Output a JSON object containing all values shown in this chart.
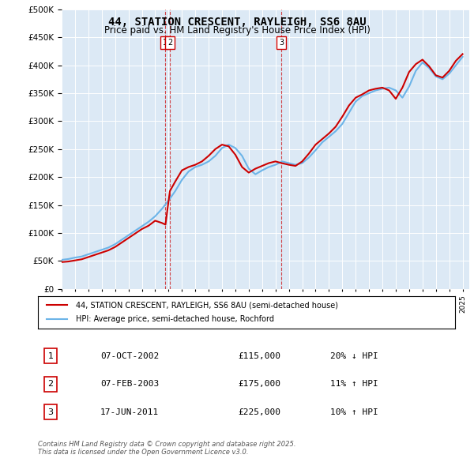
{
  "title": "44, STATION CRESCENT, RAYLEIGH, SS6 8AU",
  "subtitle": "Price paid vs. HM Land Registry's House Price Index (HPI)",
  "background_color": "#dce9f5",
  "plot_bg_color": "#dce9f5",
  "ymin": 0,
  "ymax": 500000,
  "xmin": 1995.0,
  "xmax": 2025.5,
  "legend_line1": "44, STATION CRESCENT, RAYLEIGH, SS6 8AU (semi-detached house)",
  "legend_line2": "HPI: Average price, semi-detached house, Rochford",
  "transactions": [
    {
      "num": 1,
      "date": "07-OCT-2002",
      "price": 115000,
      "change": "20% ↓ HPI",
      "x_year": 2002.77
    },
    {
      "num": 2,
      "date": "07-FEB-2003",
      "price": 175000,
      "change": "11% ↑ HPI",
      "x_year": 2003.1
    },
    {
      "num": 3,
      "date": "17-JUN-2011",
      "price": 225000,
      "change": "10% ↑ HPI",
      "x_year": 2011.46
    }
  ],
  "footer": "Contains HM Land Registry data © Crown copyright and database right 2025.\nThis data is licensed under the Open Government Licence v3.0.",
  "hpi_x": [
    1995.0,
    1995.5,
    1996.0,
    1996.5,
    1997.0,
    1997.5,
    1998.0,
    1998.5,
    1999.0,
    1999.5,
    2000.0,
    2000.5,
    2001.0,
    2001.5,
    2002.0,
    2002.5,
    2003.0,
    2003.5,
    2004.0,
    2004.5,
    2005.0,
    2005.5,
    2006.0,
    2006.5,
    2007.0,
    2007.5,
    2008.0,
    2008.5,
    2009.0,
    2009.5,
    2010.0,
    2010.5,
    2011.0,
    2011.5,
    2012.0,
    2012.5,
    2013.0,
    2013.5,
    2014.0,
    2014.5,
    2015.0,
    2015.5,
    2016.0,
    2016.5,
    2017.0,
    2017.5,
    2018.0,
    2018.5,
    2019.0,
    2019.5,
    2020.0,
    2020.5,
    2021.0,
    2021.5,
    2022.0,
    2022.5,
    2023.0,
    2023.5,
    2024.0,
    2024.5,
    2025.0
  ],
  "hpi_y": [
    52000,
    53500,
    56000,
    58000,
    62000,
    66000,
    70000,
    74000,
    80000,
    88000,
    96000,
    104000,
    112000,
    120000,
    130000,
    143000,
    158000,
    175000,
    195000,
    210000,
    218000,
    222000,
    228000,
    238000,
    252000,
    258000,
    252000,
    238000,
    215000,
    205000,
    212000,
    218000,
    222000,
    228000,
    225000,
    222000,
    225000,
    235000,
    248000,
    262000,
    272000,
    282000,
    295000,
    315000,
    335000,
    345000,
    350000,
    355000,
    358000,
    360000,
    355000,
    342000,
    362000,
    390000,
    405000,
    395000,
    380000,
    375000,
    385000,
    400000,
    415000
  ],
  "price_x": [
    1995.0,
    1995.5,
    1996.0,
    1996.5,
    1997.0,
    1997.5,
    1998.0,
    1998.5,
    1999.0,
    1999.5,
    2000.0,
    2000.5,
    2001.0,
    2001.5,
    2002.0,
    2002.5,
    2002.77,
    2003.1,
    2003.5,
    2004.0,
    2004.5,
    2005.0,
    2005.5,
    2006.0,
    2006.5,
    2007.0,
    2007.5,
    2008.0,
    2008.5,
    2009.0,
    2009.5,
    2010.0,
    2010.5,
    2011.0,
    2011.46,
    2012.0,
    2012.5,
    2013.0,
    2013.5,
    2014.0,
    2014.5,
    2015.0,
    2015.5,
    2016.0,
    2016.5,
    2017.0,
    2017.5,
    2018.0,
    2018.5,
    2019.0,
    2019.5,
    2020.0,
    2020.5,
    2021.0,
    2021.5,
    2022.0,
    2022.5,
    2023.0,
    2023.5,
    2024.0,
    2024.5,
    2025.0
  ],
  "price_y": [
    48000,
    49000,
    51000,
    53000,
    57000,
    61000,
    65000,
    69000,
    75000,
    83000,
    91000,
    99000,
    107000,
    113000,
    122000,
    118000,
    115000,
    175000,
    192000,
    212000,
    218000,
    222000,
    228000,
    238000,
    250000,
    258000,
    255000,
    240000,
    218000,
    208000,
    215000,
    220000,
    225000,
    228000,
    225000,
    222000,
    220000,
    228000,
    242000,
    258000,
    268000,
    278000,
    290000,
    308000,
    328000,
    342000,
    348000,
    355000,
    358000,
    360000,
    355000,
    340000,
    360000,
    388000,
    402000,
    410000,
    398000,
    382000,
    378000,
    390000,
    408000,
    420000
  ]
}
